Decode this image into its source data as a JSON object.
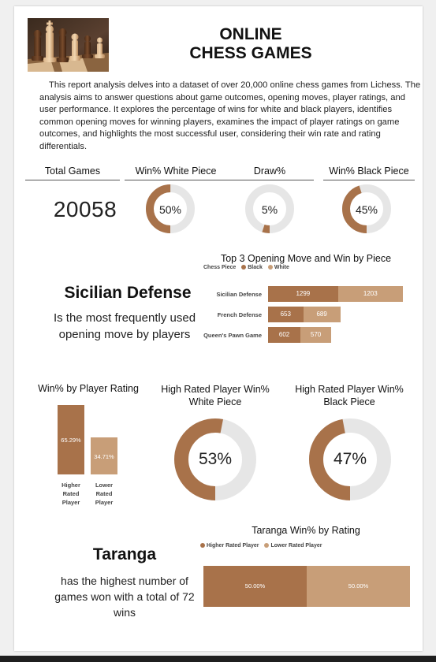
{
  "header": {
    "title_line1": "ONLINE",
    "title_line2": "CHESS GAMES",
    "intro": "This report analysis delves into a dataset of over 20,000 online chess games from Lichess. The analysis aims to answer questions about game outcomes, opening moves, player ratings, and user performance. It explores the percentage of wins for white and black players, identifies common opening moves for winning players, examines the impact of player ratings on game outcomes, and highlights the most successful user, considering their win rate and rating differentials."
  },
  "colors": {
    "black_piece": "#a8724a",
    "white_piece": "#c89e78",
    "track": "#e6e6e6"
  },
  "kpis": {
    "total_games_label": "Total Games",
    "total_games_value": "20058",
    "white_label": "Win% White Piece",
    "white_value": "50%",
    "draw_label": "Draw%",
    "draw_value": "5%",
    "black_label": "Win% Black Piece",
    "black_value": "45%"
  },
  "opening": {
    "headline": "Sicilian Defense",
    "subline": "Is the most frequently used opening move by players"
  },
  "player": {
    "headline": "Taranga",
    "subline": "has the highest number of games won with a  total of 72 wins"
  },
  "chart_data": [
    {
      "type": "pie",
      "chart_id": "win-white",
      "values": [
        50,
        50
      ],
      "label": "50%"
    },
    {
      "type": "pie",
      "chart_id": "draw",
      "values": [
        5,
        95
      ],
      "label": "5%"
    },
    {
      "type": "pie",
      "chart_id": "win-black",
      "values": [
        45,
        55
      ],
      "label": "45%"
    },
    {
      "type": "bar",
      "orientation": "horizontal",
      "stacked": true,
      "title": "Top 3 Opening Move and Win by Piece",
      "legend_title": "Chess Piece",
      "legend_placement": "top-left",
      "categories": [
        "Sicilian Defense",
        "French Defense",
        "Queen's Pawn Game"
      ],
      "series": [
        {
          "name": "Black",
          "values": [
            1299,
            653,
            602
          ]
        },
        {
          "name": "White",
          "values": [
            1203,
            689,
            570
          ]
        }
      ]
    },
    {
      "type": "bar",
      "title": "Win% by Player Rating",
      "categories": [
        "Higher Rated Player",
        "Lower Rated Player"
      ],
      "values": [
        65.29,
        34.71
      ],
      "value_labels": [
        "65.29%",
        "34.71%"
      ],
      "category_lines": [
        [
          "Higher",
          "Rated",
          "Player"
        ],
        [
          "Lower",
          "Rated",
          "Player"
        ]
      ]
    },
    {
      "type": "pie",
      "title_lines": [
        "High Rated Player Win%",
        "White Piece"
      ],
      "values": [
        53,
        47
      ],
      "label": "53%"
    },
    {
      "type": "pie",
      "title_lines": [
        "High Rated Player Win%",
        "Black Piece"
      ],
      "values": [
        47,
        53
      ],
      "label": "47%"
    },
    {
      "type": "bar",
      "orientation": "horizontal",
      "stacked": true,
      "normalized": true,
      "title": "Taranga Win% by Rating",
      "legend_placement": "top",
      "categories": [
        ""
      ],
      "series": [
        {
          "name": "Higher Rated Player",
          "values": [
            50.0
          ],
          "label": "50.00%"
        },
        {
          "name": "Lower Rated Player",
          "values": [
            50.0
          ],
          "label": "50.00%"
        }
      ]
    }
  ]
}
